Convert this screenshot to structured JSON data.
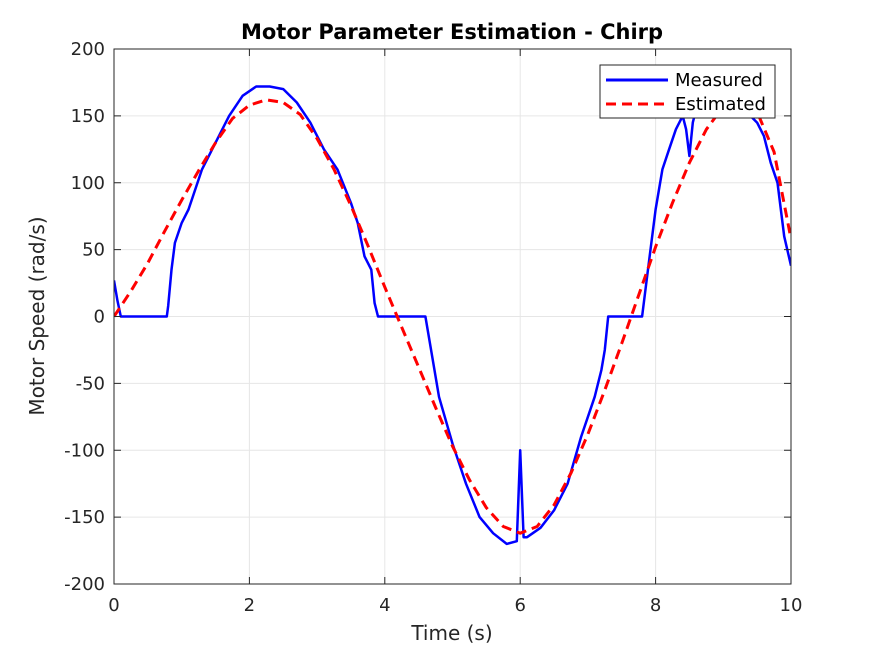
{
  "chart_data": {
    "type": "line",
    "title": "Motor Parameter Estimation - Chirp",
    "xlabel": "Time (s)",
    "ylabel": "Motor Speed (rad/s)",
    "xlim": [
      0,
      10
    ],
    "ylim": [
      -200,
      200
    ],
    "xticks": [
      0,
      2,
      4,
      6,
      8,
      10
    ],
    "yticks": [
      -200,
      -150,
      -100,
      -50,
      0,
      50,
      100,
      150,
      200
    ],
    "grid": true,
    "legend_position": "top-right",
    "colors": {
      "measured": "#0000ff",
      "estimated": "#ff0000",
      "grid": "#e6e6e6",
      "axes": "#262626"
    },
    "series": [
      {
        "name": "Measured",
        "style": "solid",
        "x": [
          0,
          0.05,
          0.1,
          0.3,
          0.6,
          0.78,
          0.8,
          0.85,
          0.9,
          1.0,
          1.1,
          1.3,
          1.5,
          1.7,
          1.9,
          2.1,
          2.3,
          2.5,
          2.7,
          2.9,
          3.1,
          3.3,
          3.5,
          3.6,
          3.7,
          3.8,
          3.85,
          3.9,
          4.0,
          4.3,
          4.6,
          4.7,
          4.8,
          5.0,
          5.2,
          5.4,
          5.6,
          5.8,
          5.95,
          6.0,
          6.05,
          6.1,
          6.3,
          6.5,
          6.7,
          6.9,
          7.1,
          7.2,
          7.25,
          7.3,
          7.35,
          7.5,
          7.7,
          7.8,
          7.9,
          8.0,
          8.1,
          8.2,
          8.3,
          8.4,
          8.45,
          8.5,
          8.55,
          8.6,
          8.7,
          8.8,
          9.0,
          9.2,
          9.4,
          9.5,
          9.6,
          9.7,
          9.8,
          9.9,
          10.0
        ],
        "y": [
          27,
          12,
          0,
          0,
          0,
          0,
          8,
          35,
          55,
          70,
          80,
          110,
          130,
          150,
          165,
          172,
          172,
          170,
          160,
          145,
          125,
          110,
          85,
          70,
          45,
          35,
          10,
          0,
          0,
          0,
          0,
          -30,
          -60,
          -95,
          -125,
          -150,
          -162,
          -170,
          -168,
          -100,
          -165,
          -165,
          -158,
          -145,
          -125,
          -90,
          -60,
          -40,
          -25,
          0,
          0,
          0,
          0,
          0,
          40,
          80,
          110,
          125,
          140,
          150,
          140,
          120,
          145,
          155,
          160,
          165,
          158,
          155,
          150,
          145,
          135,
          115,
          100,
          60,
          38
        ]
      },
      {
        "name": "Estimated",
        "style": "dashed",
        "x": [
          0,
          0.25,
          0.5,
          0.75,
          1.0,
          1.25,
          1.5,
          1.75,
          2.0,
          2.25,
          2.5,
          2.75,
          3.0,
          3.25,
          3.5,
          3.75,
          4.0,
          4.25,
          4.5,
          4.75,
          5.0,
          5.25,
          5.5,
          5.75,
          6.0,
          6.25,
          6.5,
          6.75,
          7.0,
          7.25,
          7.5,
          7.75,
          8.0,
          8.25,
          8.5,
          8.75,
          9.0,
          9.25,
          9.5,
          9.75,
          10.0
        ],
        "y": [
          0,
          19,
          40,
          64,
          87,
          109,
          130,
          148,
          158,
          162,
          160,
          151,
          133,
          110,
          83,
          53,
          22,
          -8,
          -38,
          -68,
          -97,
          -122,
          -143,
          -157,
          -162,
          -157,
          -141,
          -117,
          -88,
          -55,
          -20,
          16,
          52,
          85,
          115,
          140,
          157,
          163,
          153,
          123,
          58
        ]
      }
    ]
  }
}
